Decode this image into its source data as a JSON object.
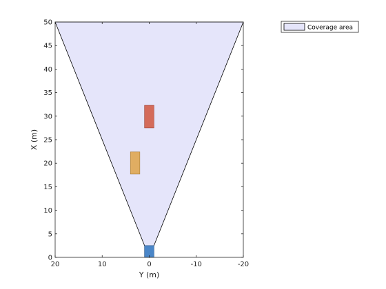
{
  "chart_data": {
    "type": "area",
    "xlabel": "Y (m)",
    "ylabel": "X (m)",
    "xlim": [
      20,
      -20
    ],
    "ylim": [
      0,
      50
    ],
    "x_reversed": true,
    "x_ticks": [
      20,
      10,
      0,
      -10,
      -20
    ],
    "y_ticks": [
      0,
      5,
      10,
      15,
      20,
      25,
      30,
      35,
      40,
      45,
      50
    ],
    "legend": {
      "placement": "outside-top-right",
      "entries": [
        "Coverage area"
      ]
    },
    "coverage_area": {
      "name": "Coverage area",
      "fill": "#e5e5fa",
      "edge": "#000000",
      "vertices": [
        [
          0,
          0
        ],
        [
          20,
          50
        ],
        [
          -20,
          50
        ]
      ]
    },
    "objects": [
      {
        "name": "ego-vehicle",
        "color": "#4a86c8",
        "edge": "#1f4e80",
        "y_range": [
          -1,
          1
        ],
        "x_range": [
          0,
          2.5
        ]
      },
      {
        "name": "red-vehicle",
        "color": "#d46b5a",
        "edge": "#9c3e30",
        "y_range": [
          -1,
          1
        ],
        "x_range": [
          27.5,
          32.3
        ]
      },
      {
        "name": "orange-vehicle",
        "color": "#e0ad62",
        "edge": "#a67a32",
        "y_range": [
          2,
          4
        ],
        "x_range": [
          17.7,
          22.4
        ]
      }
    ]
  }
}
